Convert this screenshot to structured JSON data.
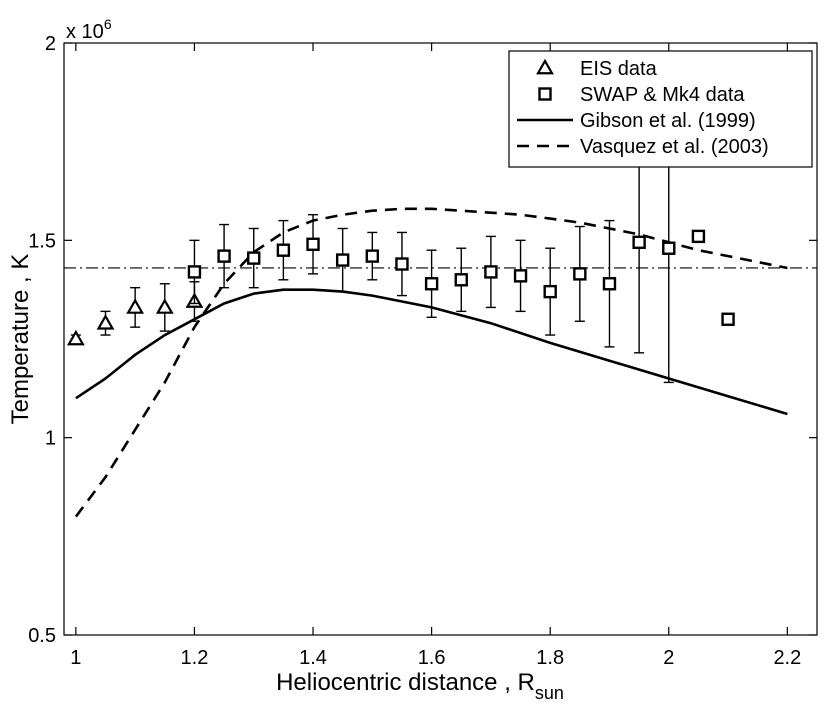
{
  "chart_data": {
    "type": "scatter",
    "xlabel": "Heliocentric distance , R",
    "xlabel_sub": "sun",
    "ylabel": "Temperature , K",
    "y_multiplier": "x 10",
    "y_multiplier_exp": "6",
    "xlim": [
      0.98,
      2.25
    ],
    "ylim": [
      0.5,
      2.0
    ],
    "x_ticks": [
      1,
      1.2,
      1.4,
      1.6,
      1.8,
      2,
      2.2
    ],
    "x_tick_labels": [
      "1",
      "1.2",
      "1.4",
      "1.6",
      "1.8",
      "2",
      "2.2"
    ],
    "y_ticks": [
      0.5,
      1,
      1.5,
      2
    ],
    "y_tick_labels": [
      "0.5",
      "1",
      "1.5",
      "2"
    ],
    "legend_position": "top-right",
    "reference_line": {
      "y": 1.43,
      "style": "dash-dot"
    },
    "series": [
      {
        "name": "EIS data",
        "kind": "markers",
        "marker": "triangle",
        "x": [
          1.0,
          1.05,
          1.1,
          1.15,
          1.2
        ],
        "y": [
          1.25,
          1.29,
          1.33,
          1.33,
          1.345
        ],
        "err": [
          0.01,
          0.03,
          0.05,
          0.06,
          0.05
        ]
      },
      {
        "name": "SWAP & Mk4 data",
        "kind": "markers",
        "marker": "square",
        "x": [
          1.2,
          1.25,
          1.3,
          1.35,
          1.4,
          1.45,
          1.5,
          1.55,
          1.6,
          1.65,
          1.7,
          1.75,
          1.8,
          1.85,
          1.9,
          1.95,
          2.0,
          2.05,
          2.1
        ],
        "y": [
          1.42,
          1.46,
          1.455,
          1.475,
          1.49,
          1.45,
          1.46,
          1.44,
          1.39,
          1.4,
          1.42,
          1.41,
          1.37,
          1.415,
          1.39,
          1.495,
          1.48,
          1.51,
          1.3
        ],
        "err": [
          0.08,
          0.08,
          0.075,
          0.075,
          0.075,
          0.08,
          0.06,
          0.08,
          0.085,
          0.08,
          0.09,
          0.09,
          0.11,
          0.12,
          0.16,
          0.28,
          0.34,
          null,
          null
        ]
      },
      {
        "name": "Gibson et al. (1999)",
        "kind": "line",
        "style": "solid",
        "x": [
          1.0,
          1.05,
          1.1,
          1.15,
          1.2,
          1.25,
          1.3,
          1.35,
          1.4,
          1.45,
          1.5,
          1.55,
          1.6,
          1.7,
          1.8,
          1.9,
          2.0,
          2.1,
          2.2
        ],
        "y": [
          1.1,
          1.15,
          1.21,
          1.26,
          1.3,
          1.34,
          1.365,
          1.375,
          1.375,
          1.37,
          1.36,
          1.345,
          1.33,
          1.29,
          1.24,
          1.195,
          1.15,
          1.105,
          1.06
        ]
      },
      {
        "name": "Vasquez et al. (2003)",
        "kind": "line",
        "style": "dashed",
        "x": [
          1.0,
          1.05,
          1.1,
          1.15,
          1.2,
          1.25,
          1.3,
          1.35,
          1.4,
          1.45,
          1.5,
          1.55,
          1.6,
          1.65,
          1.7,
          1.75,
          1.8,
          1.85,
          1.9,
          1.95,
          2.0,
          2.05,
          2.1,
          2.15,
          2.2
        ],
        "y": [
          0.8,
          0.9,
          1.02,
          1.14,
          1.28,
          1.39,
          1.47,
          1.52,
          1.55,
          1.565,
          1.575,
          1.58,
          1.58,
          1.575,
          1.57,
          1.565,
          1.555,
          1.545,
          1.53,
          1.515,
          1.495,
          1.475,
          1.46,
          1.445,
          1.43
        ]
      }
    ]
  }
}
